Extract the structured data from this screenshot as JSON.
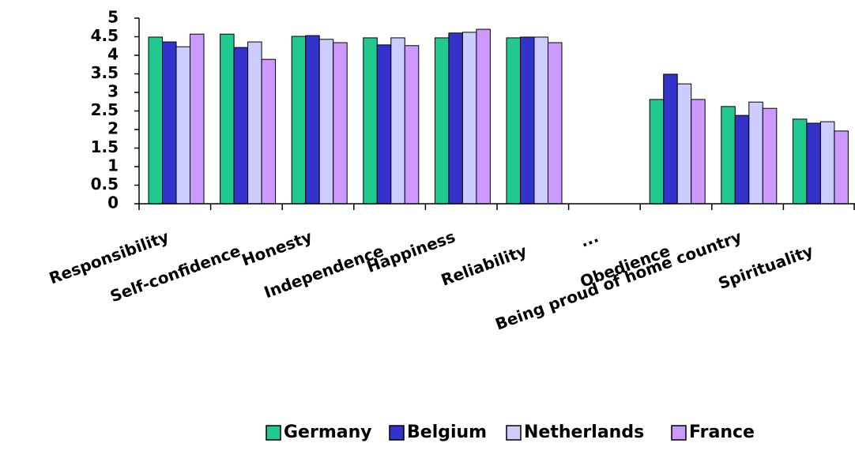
{
  "chart_data": {
    "type": "bar",
    "categories": [
      "Responsibility",
      "Self-confidence",
      "Honesty",
      "Independence",
      "Happiness",
      "Reliability",
      "...",
      "Obedience",
      "Being proud of home country",
      "Spirituality"
    ],
    "series": [
      {
        "name": "Germany",
        "color": "#22c98e",
        "values": [
          4.49,
          4.57,
          4.51,
          4.47,
          4.47,
          4.47,
          null,
          2.81,
          2.62,
          2.28
        ]
      },
      {
        "name": "Belgium",
        "color": "#3333cc",
        "values": [
          4.36,
          4.21,
          4.53,
          4.28,
          4.6,
          4.49,
          null,
          3.49,
          2.38,
          2.17
        ]
      },
      {
        "name": "Netherlands",
        "color": "#ccccff",
        "values": [
          4.23,
          4.36,
          4.43,
          4.47,
          4.62,
          4.49,
          null,
          3.23,
          2.74,
          2.21
        ]
      },
      {
        "name": "France",
        "color": "#cc99ff",
        "values": [
          4.57,
          3.89,
          4.34,
          4.26,
          4.7,
          4.34,
          null,
          2.81,
          2.57,
          1.96
        ]
      }
    ],
    "ylim": [
      0,
      5
    ],
    "yticks": [
      0,
      0.5,
      1,
      1.5,
      2,
      2.5,
      3,
      3.5,
      4,
      4.5,
      5
    ],
    "legend": "bottom"
  }
}
